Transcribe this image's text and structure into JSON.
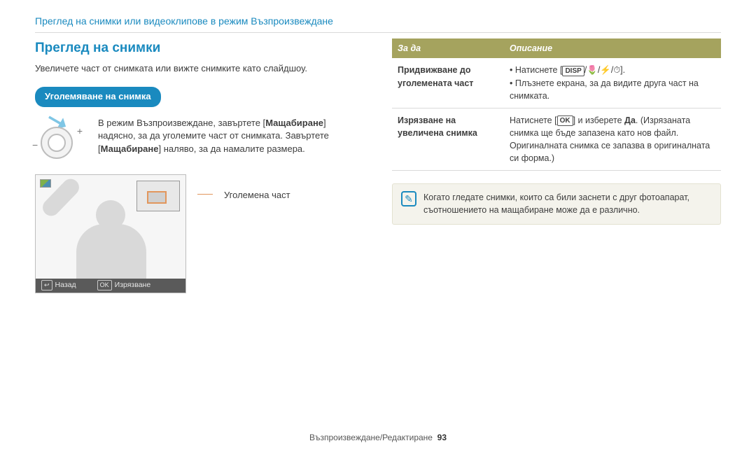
{
  "breadcrumb": "Преглед на снимки или видеоклипове в режим Възпроизвеждане",
  "left": {
    "title": "Преглед на снимки",
    "intro": "Увеличете част от снимката или вижте снимките като слайдшоу.",
    "pill": "Уголемяване на снимка",
    "dial_text_prefix": "В режим Възпроизвеждане, завъртете [",
    "dial_keyword1": "Мащабиране",
    "dial_text_mid": "] надясно, за да уголемите част от снимката. Завъртете [",
    "dial_keyword2": "Мащабиране",
    "dial_text_suffix": "] наляво, за да намалите размера.",
    "callout": "Уголемена част",
    "statusbar": {
      "back_icon": "↩",
      "back": "Назад",
      "ok_icon": "OK",
      "ok": "Изрязване"
    }
  },
  "table": {
    "headers": [
      "За да",
      "Описание"
    ],
    "rows": [
      {
        "label": "Придвижване до уголемената част",
        "bullets_prefix": "Натиснете [",
        "icons": "DISP",
        "icons_suffix": "/🌷/⚡/⏱].",
        "bullet2": "Плъзнете екрана, за да видите друга част на снимката."
      },
      {
        "label": "Изрязване на увеличена снимка",
        "text_prefix": "Натиснете [",
        "ok_icon": "OK",
        "text_mid": "] и изберете ",
        "yes": "Да",
        "text_suffix": ". (Изрязаната снимка ще бъде запазена като нов файл. Оригиналната снимка се запазва в оригиналната си форма.)"
      }
    ]
  },
  "note": {
    "icon_glyph": "✎",
    "text": "Когато гледате снимки, които са били заснети с друг фотоапарат, съотношението на мащабиране може да е различно."
  },
  "footer": {
    "section": "Възпроизвеждане/Редактиране",
    "page": "93"
  },
  "colors": {
    "accent": "#1a8abf",
    "olive": "#a5a35e",
    "callout": "#e2965c"
  }
}
